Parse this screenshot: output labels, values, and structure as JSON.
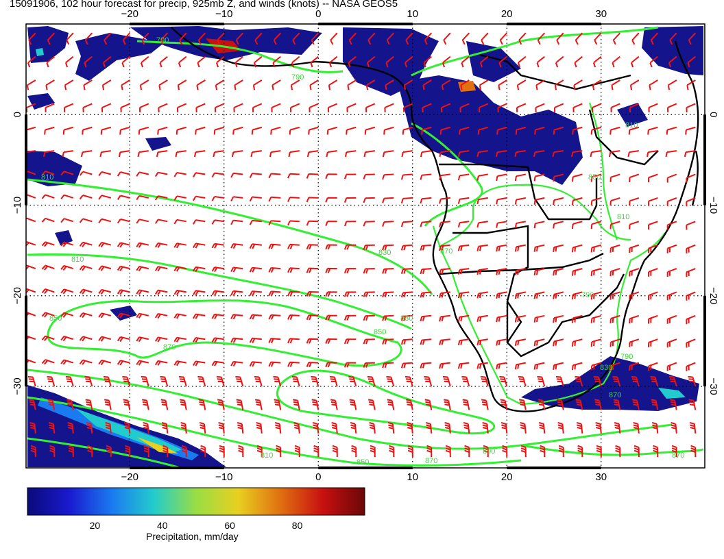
{
  "title": "15091906, 102 hour forecast for precip, 925mb Z, and winds (knots) -- NASA GEOS5",
  "map": {
    "lon_range": [
      -31,
      41
    ],
    "lat_range": [
      -39,
      10
    ],
    "lon_ticks": [
      -20,
      -10,
      0,
      10,
      20,
      30
    ],
    "lat_ticks": [
      0,
      -10,
      -20,
      -30
    ],
    "lon_tick_labels": [
      "−20",
      "−10",
      "0",
      "10",
      "20",
      "30"
    ],
    "lat_tick_labels": [
      "0",
      "−10",
      "−20",
      "−30"
    ],
    "contour_labels": [
      "790",
      "790",
      "810",
      "830",
      "810",
      "850",
      "830",
      "870",
      "850",
      "830",
      "850",
      "870",
      "890",
      "870",
      "810",
      "850",
      "870",
      "810",
      "790",
      "790",
      "810",
      "870"
    ],
    "colors": {
      "contour": "#33ee33",
      "wind": "#ee1111",
      "coast": "#000000",
      "grid": "#000000"
    }
  },
  "colorbar": {
    "title": "Precipitation, mm/day",
    "min": 0,
    "max": 100,
    "ticks": [
      "20",
      "40",
      "60",
      "80"
    ],
    "tick_values": [
      20,
      40,
      60,
      80
    ],
    "colors": [
      "#0a0a7a",
      "#1a1ad0",
      "#1a7af0",
      "#22cccc",
      "#99dd44",
      "#e8d020",
      "#e07010",
      "#c81010",
      "#6a0808"
    ]
  }
}
